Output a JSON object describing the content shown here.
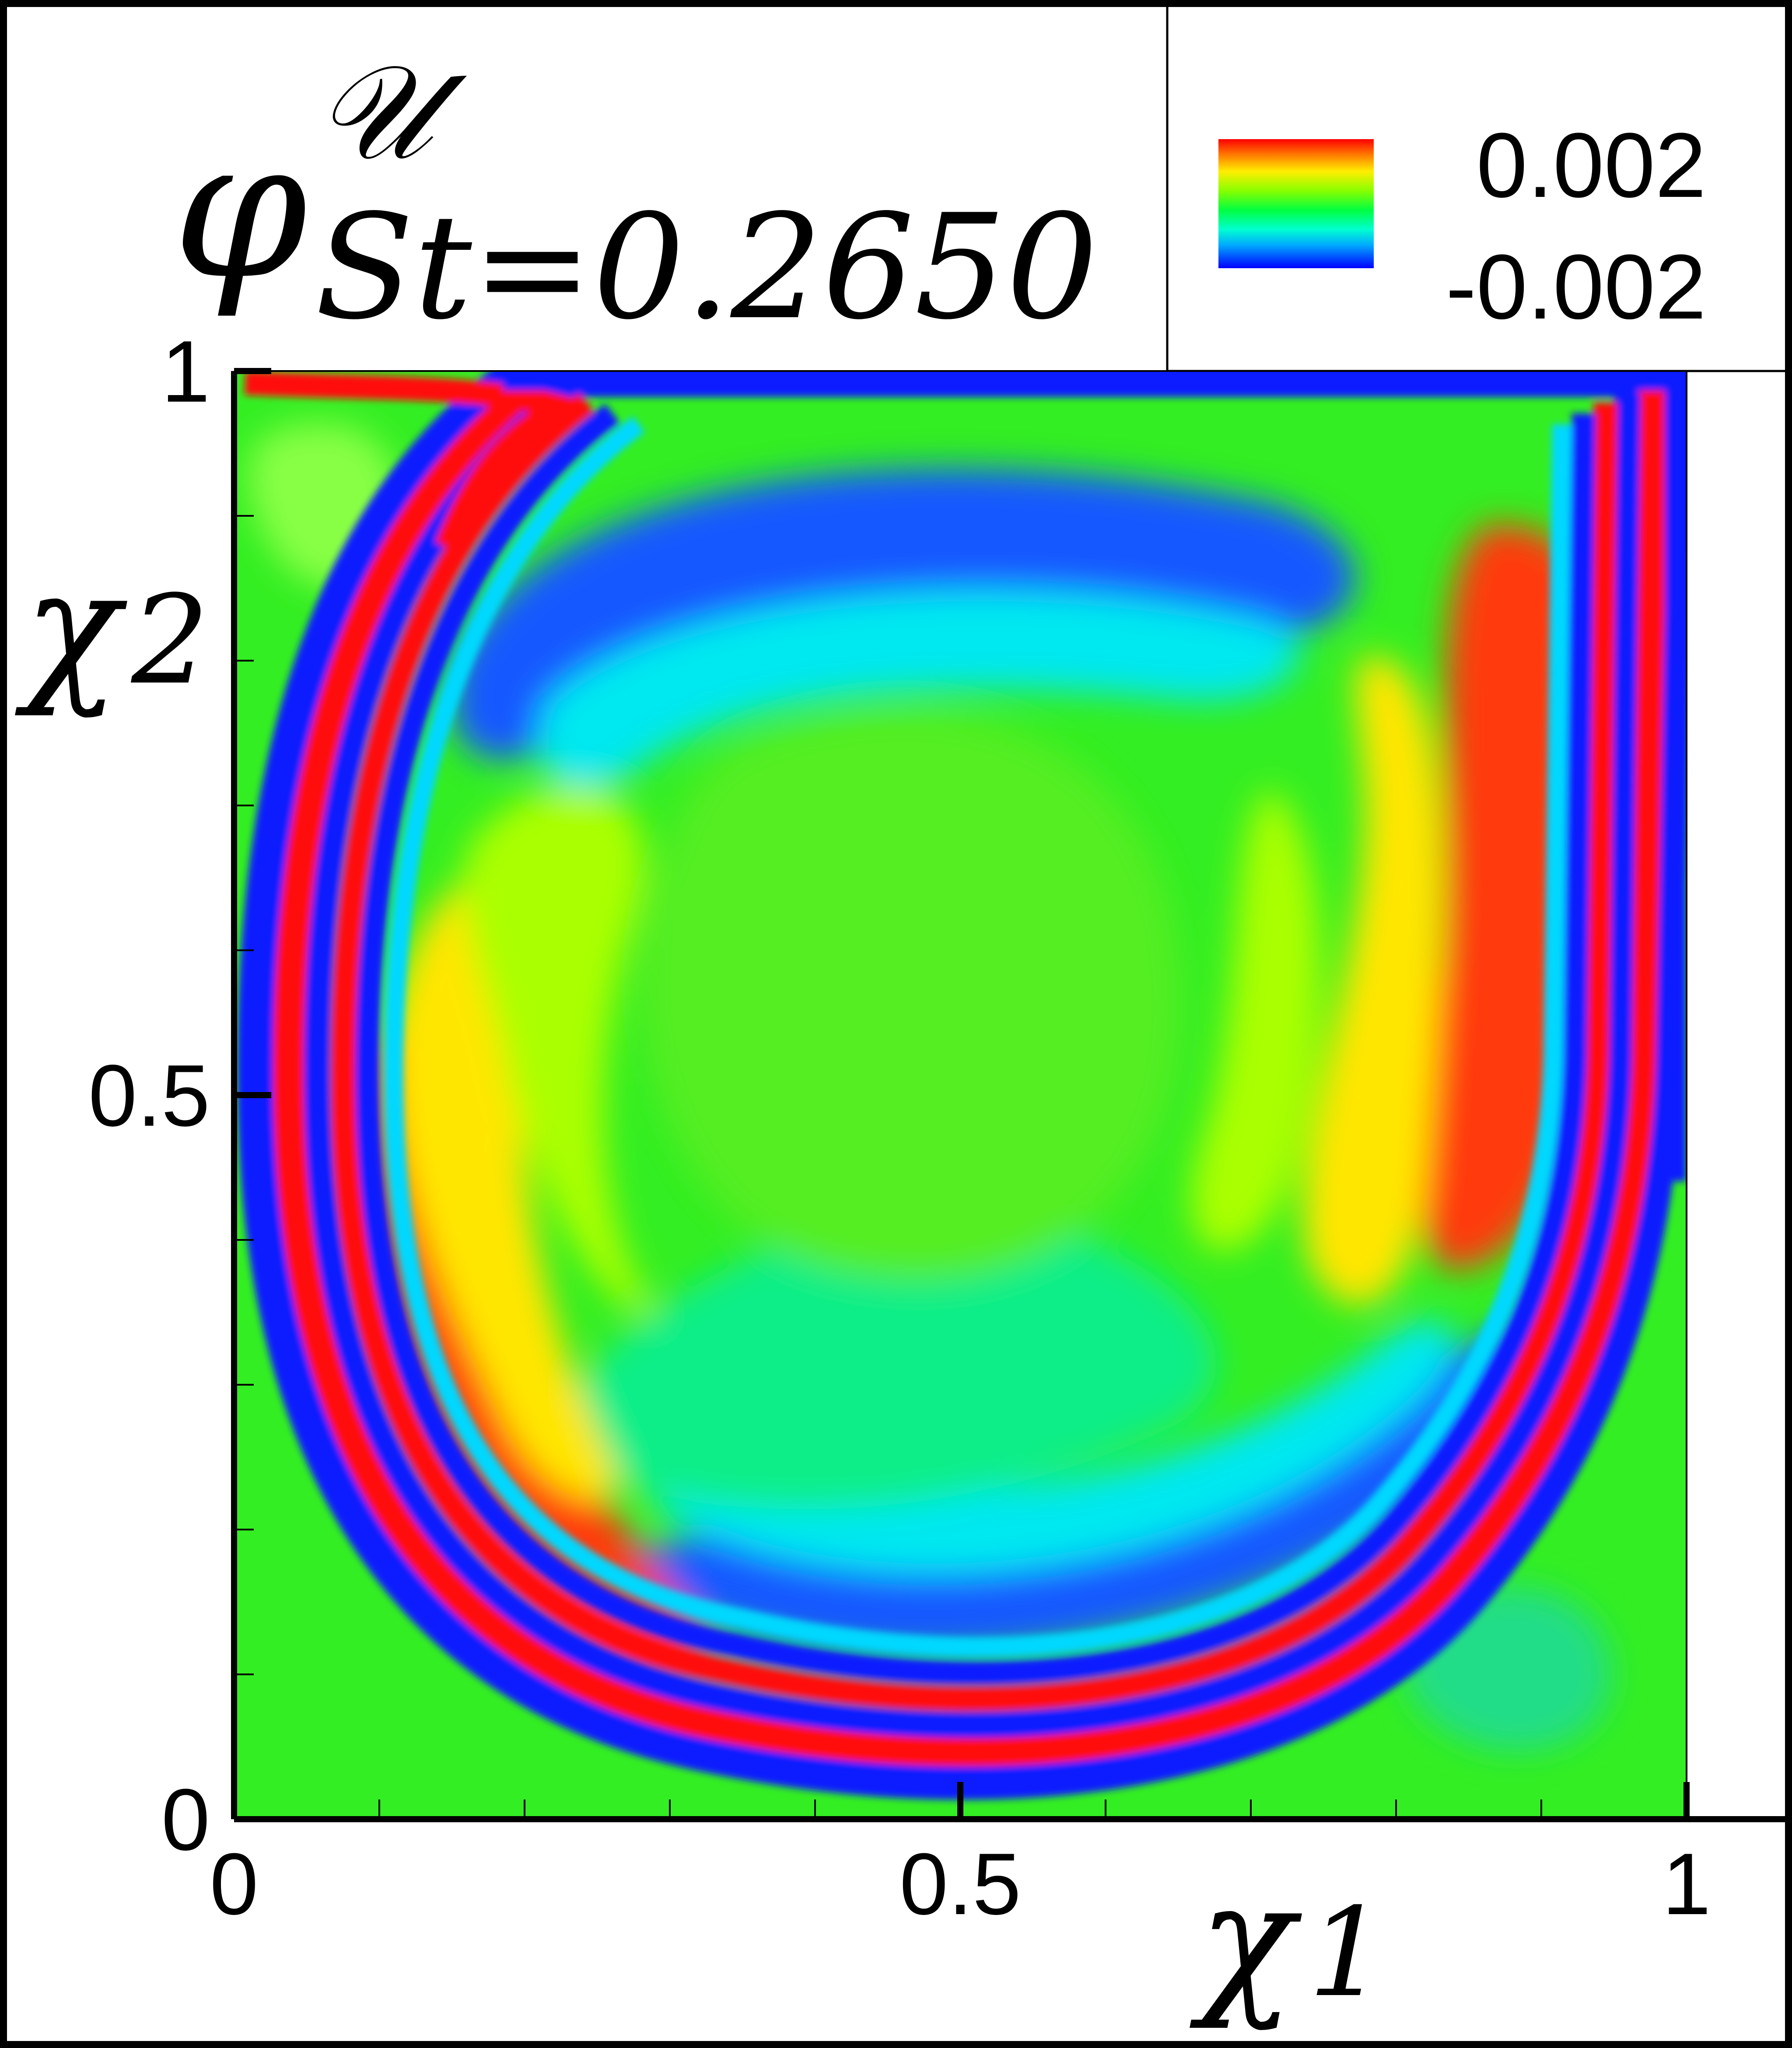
{
  "chart_data": {
    "type": "heatmap",
    "title": {
      "symbol": "φ",
      "superscript": "𝒰",
      "subscript": "St=0.2650"
    },
    "xlabel": {
      "symbol": "χ",
      "sub": "1"
    },
    "ylabel": {
      "symbol": "χ",
      "sub": "2"
    },
    "xlim": [
      0,
      1
    ],
    "ylim": [
      0,
      1
    ],
    "x_ticks": [
      {
        "value": 0,
        "label": "0"
      },
      {
        "value": 0.5,
        "label": "0.5"
      },
      {
        "value": 1,
        "label": "1"
      }
    ],
    "y_ticks": [
      {
        "value": 0,
        "label": "0"
      },
      {
        "value": 0.5,
        "label": "0.5"
      },
      {
        "value": 1,
        "label": "1"
      }
    ],
    "x_minor_ticks": [
      0.1,
      0.2,
      0.3,
      0.4,
      0.6,
      0.7,
      0.8,
      0.9
    ],
    "y_minor_ticks": [
      0.1,
      0.2,
      0.3,
      0.4,
      0.6,
      0.7,
      0.8,
      0.9
    ],
    "colorbar": {
      "position": "top-right",
      "max_label": "0.002",
      "min_label": "-0.002",
      "min": -0.002,
      "max": 0.002,
      "colormap": [
        "#0000ff",
        "#00bfff",
        "#00ffff",
        "#00ff80",
        "#00ff00",
        "#80ff00",
        "#ffff00",
        "#ff8000",
        "#ff0000"
      ]
    },
    "field_colors": {
      "background": "#33ee22",
      "low": "#0a1aff",
      "low_mid": "#00e8f0",
      "mid_low": "#10ee88",
      "mid": "#55ee22",
      "mid_high": "#aaff00",
      "high_mid": "#ffee00",
      "high": "#ff5500",
      "peak": "#ff1010"
    }
  }
}
